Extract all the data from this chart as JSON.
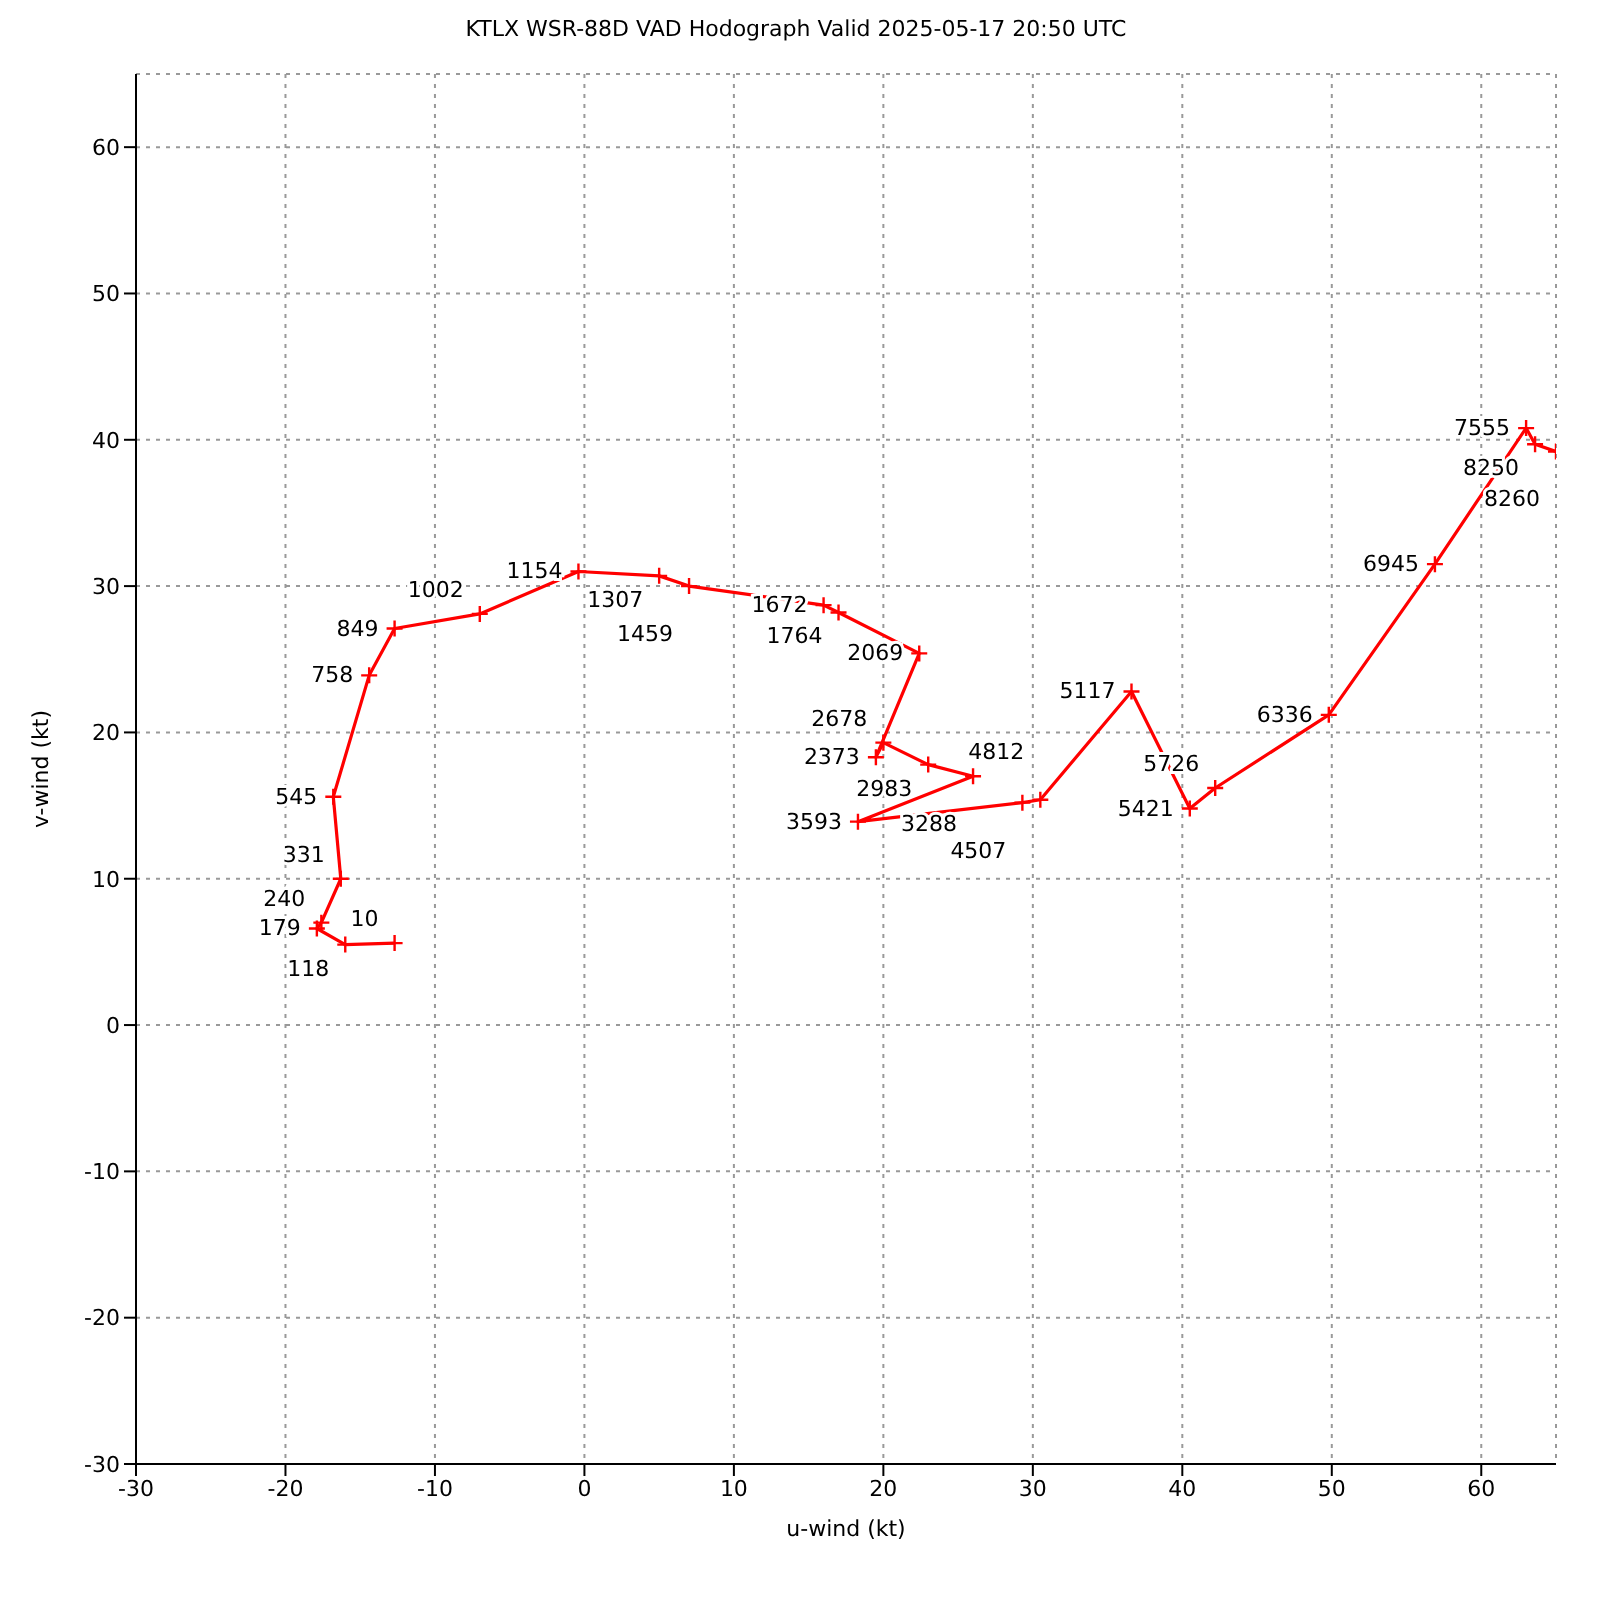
{
  "chart_data": {
    "type": "line",
    "title": "KTLX WSR-88D VAD Hodograph Valid 2025-05-17 20:50 UTC",
    "xlabel": "u-wind (kt)",
    "ylabel": "v-wind (kt)",
    "xlim": [
      -30,
      65
    ],
    "ylim": [
      -30,
      65
    ],
    "xticks": [
      -30,
      -20,
      -10,
      0,
      10,
      20,
      30,
      40,
      50,
      60
    ],
    "yticks": [
      -30,
      -20,
      -10,
      0,
      10,
      20,
      30,
      40,
      50,
      60
    ],
    "grid": true,
    "legend": false,
    "marker": "cross",
    "line_style": "solid",
    "series": [
      {
        "color": "#ff0000",
        "x": [
          -12.7,
          -16.0,
          -17.9,
          -17.6,
          -16.3,
          -16.8,
          -14.4,
          -12.7,
          -7.0,
          -0.4,
          5.0,
          7.0,
          16.0,
          17.0,
          22.4,
          19.5,
          20.0,
          23.0,
          26.0,
          18.3,
          29.3,
          30.5,
          36.6,
          40.5,
          42.2,
          49.8,
          56.9,
          63.0,
          63.6,
          65.0
        ],
        "values": [
          5.6,
          5.5,
          6.6,
          7.0,
          10.0,
          15.6,
          23.9,
          27.1,
          28.1,
          31.0,
          30.7,
          30.0,
          28.7,
          28.2,
          25.4,
          18.3,
          19.3,
          17.8,
          17.0,
          13.9,
          15.2,
          15.4,
          22.8,
          14.8,
          16.2,
          21.2,
          31.5,
          40.8,
          39.7,
          39.2
        ]
      }
    ],
    "annotations": [
      {
        "text": "10",
        "x": -12.7,
        "y": 5.6
      },
      {
        "text": "118",
        "x": -16.0,
        "y": 5.5
      },
      {
        "text": "179",
        "x": -17.9,
        "y": 6.6
      },
      {
        "text": "240",
        "x": -17.6,
        "y": 7.0
      },
      {
        "text": "331",
        "x": -16.3,
        "y": 10.0
      },
      {
        "text": "545",
        "x": -16.8,
        "y": 15.6
      },
      {
        "text": "758",
        "x": -14.4,
        "y": 23.9
      },
      {
        "text": "849",
        "x": -12.7,
        "y": 27.1
      },
      {
        "text": "1002",
        "x": -7.0,
        "y": 28.1
      },
      {
        "text": "1154",
        "x": -0.4,
        "y": 31.0
      },
      {
        "text": "1307",
        "x": 5.0,
        "y": 30.7
      },
      {
        "text": "1459",
        "x": 7.0,
        "y": 30.0
      },
      {
        "text": "1672",
        "x": 16.0,
        "y": 28.7
      },
      {
        "text": "1764",
        "x": 17.0,
        "y": 28.2
      },
      {
        "text": "2069",
        "x": 22.4,
        "y": 25.4
      },
      {
        "text": "2373",
        "x": 19.5,
        "y": 18.3
      },
      {
        "text": "2678",
        "x": 20.0,
        "y": 19.3
      },
      {
        "text": "2983",
        "x": 23.0,
        "y": 17.8
      },
      {
        "text": "3288",
        "x": 26.0,
        "y": 17.0
      },
      {
        "text": "3593",
        "x": 18.3,
        "y": 13.9
      },
      {
        "text": "4507",
        "x": 29.3,
        "y": 15.2
      },
      {
        "text": "4812",
        "x": 30.5,
        "y": 15.4
      },
      {
        "text": "5117",
        "x": 36.6,
        "y": 22.8
      },
      {
        "text": "5421",
        "x": 40.5,
        "y": 14.8
      },
      {
        "text": "5726",
        "x": 42.2,
        "y": 16.2
      },
      {
        "text": "6336",
        "x": 49.8,
        "y": 21.2
      },
      {
        "text": "6945",
        "x": 56.9,
        "y": 31.5
      },
      {
        "text": "7555",
        "x": 63.0,
        "y": 40.8
      },
      {
        "text": "8250",
        "x": 63.6,
        "y": 39.7
      },
      {
        "text": "8260",
        "x": 65.0,
        "y": 39.2
      }
    ]
  }
}
